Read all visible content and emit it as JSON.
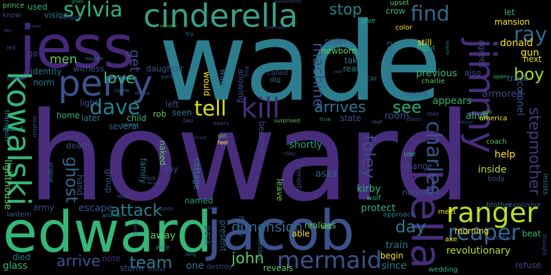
{
  "palette": {
    "background": "#000000",
    "teal": "#2c7e8e",
    "dark_purple": "#46277a",
    "purple": "#472d7b",
    "indigo": "#3b528b",
    "blue": "#31688e",
    "green": "#35b779",
    "lime": "#90d743",
    "yellow": "#fde725"
  },
  "words": [
    {
      "text": "howard",
      "color": "#472d7b"
    },
    {
      "text": "wade",
      "color": "#2c7e8e"
    },
    {
      "text": "jess",
      "color": "#46277a"
    },
    {
      "text": "edward",
      "color": "#35b779"
    },
    {
      "text": "jacob",
      "color": "#3b528b"
    },
    {
      "text": "cinderella",
      "color": "#3b9e89"
    },
    {
      "text": "perry",
      "color": "#3b528b"
    },
    {
      "text": "jimmy",
      "color": "#472d7b"
    },
    {
      "text": "bella",
      "color": "#472d7b"
    },
    {
      "text": "ranger",
      "color": "#b8de29"
    },
    {
      "text": "kowalski",
      "color": "#35b779"
    },
    {
      "text": "mermaid",
      "color": "#3b528b"
    },
    {
      "text": "reaper",
      "color": "#31688e"
    },
    {
      "text": "sylvia",
      "color": "#2fb47c"
    },
    {
      "text": "kill",
      "color": "#472d7b"
    },
    {
      "text": "tell",
      "color": "#d8e219"
    },
    {
      "text": "find",
      "color": "#31688e"
    },
    {
      "text": "ray",
      "color": "#31688e"
    },
    {
      "text": "dave",
      "color": "#27808e"
    },
    {
      "text": "charles",
      "color": "#3b528b"
    },
    {
      "text": "arrives",
      "color": "#2a788e"
    },
    {
      "text": "see",
      "color": "#26ad81"
    },
    {
      "text": "foley",
      "color": "#3e4a89"
    },
    {
      "text": "stepmother",
      "color": "#443983"
    },
    {
      "text": "men",
      "color": "#5ec962"
    },
    {
      "text": "love",
      "color": "#35b779"
    },
    {
      "text": "machine",
      "color": "#3e4a89"
    },
    {
      "text": "ghost",
      "color": "#31688e"
    },
    {
      "text": "team",
      "color": "#2a788e"
    },
    {
      "text": "attack",
      "color": "#27808e"
    },
    {
      "text": "arrive",
      "color": "#3b528b"
    },
    {
      "text": "john",
      "color": "#5ec962"
    },
    {
      "text": "dimension",
      "color": "#31688e"
    },
    {
      "text": "day",
      "color": "#2a788e"
    },
    {
      "text": "boy",
      "color": "#a0da39"
    },
    {
      "text": "get",
      "color": "#3e4a89"
    },
    {
      "text": "stop",
      "color": "#2c7e8e"
    },
    {
      "text": "previous",
      "color": "#35b779"
    },
    {
      "text": "kirby",
      "color": "#2fb47c"
    },
    {
      "text": "room",
      "color": "#3e4a89"
    },
    {
      "text": "alive",
      "color": "#35b779"
    },
    {
      "text": "gun",
      "color": "#fde725"
    },
    {
      "text": "donald",
      "color": "#fde725"
    },
    {
      "text": "armored",
      "color": "#3e4a89"
    },
    {
      "text": "colonel",
      "color": "#3b528b"
    },
    {
      "text": "revolutionary",
      "color": "#b8de29"
    },
    {
      "text": "protect",
      "color": "#2fb47c"
    },
    {
      "text": "since",
      "color": "#25838e"
    },
    {
      "text": "train",
      "color": "#2a788e"
    },
    {
      "text": "morning",
      "color": "#fde725"
    },
    {
      "text": "lighthouse",
      "color": "#5ec962"
    },
    {
      "text": "escape",
      "color": "#3b528b"
    },
    {
      "text": "army",
      "color": "#3e4a89"
    },
    {
      "text": "lantern",
      "color": "#31688e"
    },
    {
      "text": "glass",
      "color": "#35b779"
    },
    {
      "text": "died",
      "color": "#2a788e"
    },
    {
      "text": "storm",
      "color": "#3b528b"
    },
    {
      "text": "note",
      "color": "#472d7b"
    },
    {
      "text": "away",
      "color": "#5ec962"
    },
    {
      "text": "one",
      "color": "#2a788e"
    },
    {
      "text": "named",
      "color": "#20a386"
    },
    {
      "text": "pack",
      "color": "#3e4a89"
    },
    {
      "text": "present",
      "color": "#31688e"
    },
    {
      "text": "finally",
      "color": "#3b528b"
    },
    {
      "text": "leave",
      "color": "#5ec962"
    },
    {
      "text": "realizes",
      "color": "#5ec962"
    },
    {
      "text": "able",
      "color": "#fde725"
    },
    {
      "text": "begin",
      "color": "#fde725"
    },
    {
      "text": "notice",
      "color": "#3b528b"
    },
    {
      "text": "change",
      "color": "#3e4a89"
    },
    {
      "text": "asks",
      "color": "#31688e"
    },
    {
      "text": "shortly",
      "color": "#20a386"
    },
    {
      "text": "becomes",
      "color": "#3e4a89"
    },
    {
      "text": "state",
      "color": "#3b528b"
    },
    {
      "text": "help",
      "color": "#fde725"
    },
    {
      "text": "inside",
      "color": "#b8de29"
    },
    {
      "text": "coach",
      "color": "#5ec962"
    },
    {
      "text": "appears",
      "color": "#2fb47c"
    },
    {
      "text": "also",
      "color": "#3e4a89"
    },
    {
      "text": "next",
      "color": "#d8e219"
    },
    {
      "text": "mansion",
      "color": "#fde725"
    },
    {
      "text": "let",
      "color": "#35b779"
    },
    {
      "text": "track",
      "color": "#31688e"
    },
    {
      "text": "still",
      "color": "#fde725"
    },
    {
      "text": "crow",
      "color": "#35b779"
    },
    {
      "text": "agrees",
      "color": "#3b528b"
    },
    {
      "text": "continues",
      "color": "#31688e"
    },
    {
      "text": "take",
      "color": "#2a788e"
    },
    {
      "text": "real",
      "color": "#27808e"
    },
    {
      "text": "newborn",
      "color": "#5ec962"
    },
    {
      "text": "order",
      "color": "#3b528b"
    },
    {
      "text": "would",
      "color": "#fde725"
    },
    {
      "text": "allowing",
      "color": "#3e4a89"
    },
    {
      "text": "water",
      "color": "#31688e"
    },
    {
      "text": "daughter",
      "color": "#3b528b"
    },
    {
      "text": "left",
      "color": "#3e4a89"
    },
    {
      "text": "rob",
      "color": "#5ec962"
    },
    {
      "text": "seen",
      "color": "#2a788e"
    },
    {
      "text": "child",
      "color": "#35b779"
    },
    {
      "text": "several",
      "color": "#31688e"
    },
    {
      "text": "later",
      "color": "#2a788e"
    },
    {
      "text": "light",
      "color": "#3e4a89"
    },
    {
      "text": "home",
      "color": "#2fb47c"
    },
    {
      "text": "witness",
      "color": "#3b528b"
    },
    {
      "text": "norm",
      "color": "#2a788e"
    },
    {
      "text": "identity",
      "color": "#2a788e"
    },
    {
      "text": "go",
      "color": "#3e4a89"
    },
    {
      "text": "vision",
      "color": "#2a788e"
    },
    {
      "text": "used",
      "color": "#2fb47c"
    },
    {
      "text": "prince",
      "color": "#5ec962"
    },
    {
      "text": "know",
      "color": "#3e4a89"
    },
    {
      "text": "death",
      "color": "#3e4a89"
    },
    {
      "text": "family",
      "color": "#2a788e"
    },
    {
      "text": "naked",
      "color": "#5ec962"
    },
    {
      "text": "say",
      "color": "#3e4a89"
    },
    {
      "text": "cottage",
      "color": "#2c7e8e"
    },
    {
      "text": "group",
      "color": "#3b528b"
    },
    {
      "text": "hand",
      "color": "#3b528b"
    },
    {
      "text": "island",
      "color": "#20a386"
    },
    {
      "text": "transport",
      "color": "#2a788e"
    },
    {
      "text": "beat",
      "color": "#35b779"
    },
    {
      "text": "refuse",
      "color": "#3e4a89"
    },
    {
      "text": "brother",
      "color": "#2a788e"
    },
    {
      "text": "explosive",
      "color": "#3b528b"
    },
    {
      "text": "wedding",
      "color": "#2fb47c"
    },
    {
      "text": "axe",
      "color": "#fde725"
    },
    {
      "text": "meet",
      "color": "#fde725"
    },
    {
      "text": "brendan",
      "color": "#3e4a89"
    },
    {
      "text": "approach",
      "color": "#2a788e"
    },
    {
      "text": "wolf",
      "color": "#2fb47c"
    },
    {
      "text": "reveals",
      "color": "#5ec962"
    },
    {
      "text": "destroy",
      "color": "#3e4a89"
    },
    {
      "text": "wife",
      "color": "#2a788e"
    },
    {
      "text": "confesses",
      "color": "#2a788e"
    },
    {
      "text": "set",
      "color": "#5ec962"
    },
    {
      "text": "immortal",
      "color": "#3e4a89"
    },
    {
      "text": "use",
      "color": "#2fb47c"
    },
    {
      "text": "america",
      "color": "#fde725"
    },
    {
      "text": "body",
      "color": "#3b528b"
    },
    {
      "text": "insists",
      "color": "#2a788e"
    },
    {
      "text": "thought",
      "color": "#3e4a89"
    },
    {
      "text": "evil",
      "color": "#5ec962"
    },
    {
      "text": "charlie",
      "color": "#5ec962"
    },
    {
      "text": "saying",
      "color": "#3b528b"
    },
    {
      "text": "open",
      "color": "#2fb47c"
    },
    {
      "text": "night",
      "color": "#2fb47c"
    },
    {
      "text": "color",
      "color": "#fde725"
    },
    {
      "text": "upset",
      "color": "#5ec962"
    },
    {
      "text": "give",
      "color": "#2fb47c"
    },
    {
      "text": "car",
      "color": "#2a788e"
    },
    {
      "text": "called",
      "color": "#3e4a89"
    },
    {
      "text": "dig",
      "color": "#2a788e"
    },
    {
      "text": "kiss",
      "color": "#3b528b"
    },
    {
      "text": "vampire",
      "color": "#3e4a89"
    },
    {
      "text": "green",
      "color": "#2fb47c"
    },
    {
      "text": "month",
      "color": "#2a788e"
    },
    {
      "text": "come",
      "color": "#31688e"
    },
    {
      "text": "make",
      "color": "#3e4a89"
    },
    {
      "text": "part",
      "color": "#3b528b"
    },
    {
      "text": "power",
      "color": "#2a788e"
    },
    {
      "text": "two",
      "color": "#3b528b"
    },
    {
      "text": "every",
      "color": "#3e4a89"
    },
    {
      "text": "got",
      "color": "#5ec962"
    },
    {
      "text": "feel",
      "color": "#fde725"
    },
    {
      "text": "leaf",
      "color": "#3b528b"
    },
    {
      "text": "true",
      "color": "#2a788e"
    },
    {
      "text": "riley",
      "color": "#3e4a89"
    },
    {
      "text": "claim",
      "color": "#3e4a89"
    },
    {
      "text": "stay",
      "color": "#3e4a89"
    },
    {
      "text": "try",
      "color": "#2a788e"
    },
    {
      "text": "job",
      "color": "#3b528b"
    },
    {
      "text": "lead",
      "color": "#3b528b"
    },
    {
      "text": "upon",
      "color": "#3e4a89"
    },
    {
      "text": "animal",
      "color": "#2a788e"
    },
    {
      "text": "friend",
      "color": "#3b528b"
    },
    {
      "text": "surprised",
      "color": "#5ec962"
    },
    {
      "text": "led",
      "color": "#3b528b"
    },
    {
      "text": "key",
      "color": "#3e4a89"
    },
    {
      "text": "pair",
      "color": "#3e4a89"
    },
    {
      "text": "location",
      "color": "#3b528b"
    },
    {
      "text": "original",
      "color": "#2a788e"
    },
    {
      "text": "joining",
      "color": "#3e4a89"
    },
    {
      "text": "alcohol",
      "color": "#3b528b"
    },
    {
      "text": "member",
      "color": "#5ec962"
    },
    {
      "text": "alternate",
      "color": "#3e4a89"
    },
    {
      "text": "inadvertently",
      "color": "#3e4a89"
    },
    {
      "text": "year",
      "color": "#3b528b"
    },
    {
      "text": "followed",
      "color": "#3e4a89"
    },
    {
      "text": "without",
      "color": "#3b528b"
    },
    {
      "text": "despite",
      "color": "#2a788e"
    },
    {
      "text": "board",
      "color": "#3e4a89"
    },
    {
      "text": "keep",
      "color": "#3e4a89"
    },
    {
      "text": "among",
      "color": "#3b528b"
    },
    {
      "text": "using",
      "color": "#2a788e"
    },
    {
      "text": "mom",
      "color": "#3e4a89"
    }
  ]
}
